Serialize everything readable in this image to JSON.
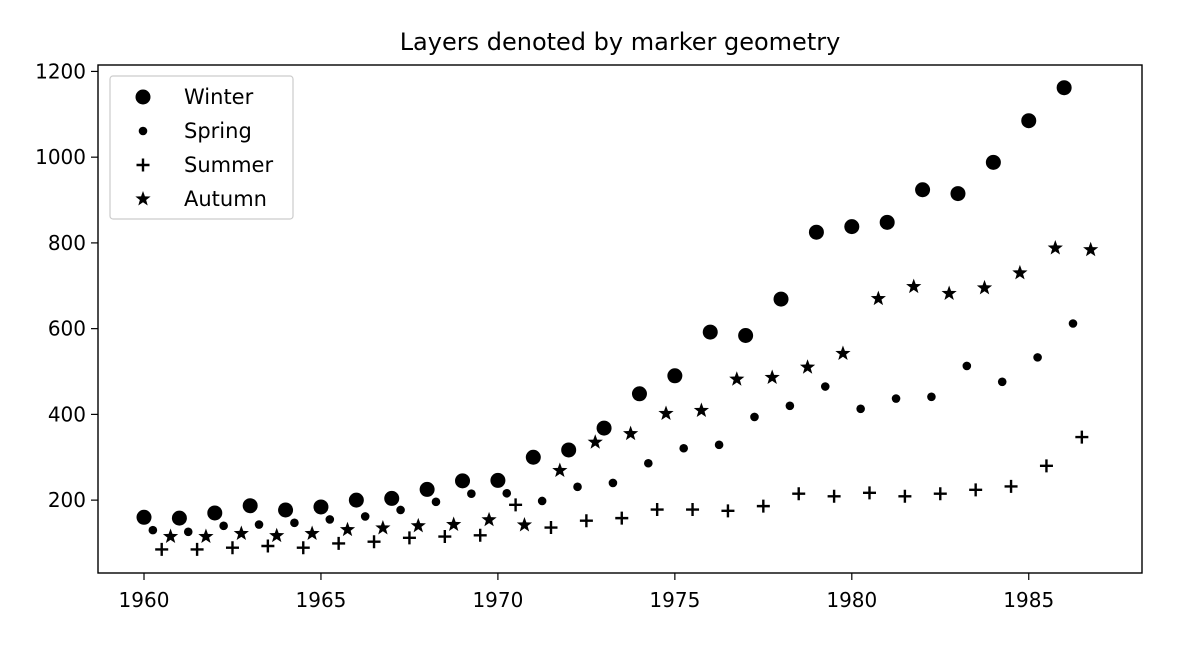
{
  "chart_data": {
    "type": "scatter",
    "title": "Layers denoted by marker geometry",
    "xlabel": "",
    "ylabel": "",
    "xlim": [
      1958.7,
      1988.2
    ],
    "ylim": [
      30,
      1215
    ],
    "x_ticks": [
      "1960",
      "1965",
      "1970",
      "1975",
      "1980",
      "1985"
    ],
    "y_ticks": [
      "200",
      "400",
      "600",
      "800",
      "1000",
      "1200"
    ],
    "grid": false,
    "legend_position": "upper left",
    "marker_color": "#000000",
    "series": [
      {
        "name": "Winter",
        "marker": "large-circle",
        "x": [
          1960,
          1961,
          1962,
          1963,
          1964,
          1965,
          1966,
          1967,
          1968,
          1969,
          1970,
          1971,
          1972,
          1973,
          1974,
          1975,
          1976,
          1977,
          1978,
          1979,
          1980,
          1981,
          1982,
          1983,
          1984,
          1985,
          1986
        ],
        "y": [
          160,
          158,
          170,
          187,
          177,
          184,
          200,
          204,
          225,
          245,
          246,
          300,
          317,
          368,
          448,
          490,
          592,
          584,
          669,
          825,
          838,
          848,
          924,
          915,
          988,
          1085,
          1162
        ]
      },
      {
        "name": "Spring",
        "marker": "small-circle",
        "x": [
          1960.25,
          1961.25,
          1962.25,
          1963.25,
          1964.25,
          1965.25,
          1966.25,
          1967.25,
          1968.25,
          1969.25,
          1970.25,
          1971.25,
          1972.25,
          1973.25,
          1974.25,
          1975.25,
          1976.25,
          1977.25,
          1978.25,
          1979.25,
          1980.25,
          1981.25,
          1982.25,
          1983.25,
          1984.25,
          1985.25,
          1986.25
        ],
        "y": [
          130,
          126,
          140,
          143,
          147,
          155,
          162,
          177,
          196,
          215,
          216,
          198,
          231,
          240,
          286,
          321,
          329,
          394,
          420,
          465,
          413,
          437,
          441,
          513,
          476,
          533,
          612
        ]
      },
      {
        "name": "Summer",
        "marker": "plus",
        "x": [
          1960.5,
          1961.5,
          1962.5,
          1963.5,
          1964.5,
          1965.5,
          1966.5,
          1967.5,
          1968.5,
          1969.5,
          1970.5,
          1971.5,
          1972.5,
          1973.5,
          1974.5,
          1975.5,
          1976.5,
          1977.5,
          1978.5,
          1979.5,
          1980.5,
          1981.5,
          1982.5,
          1983.5,
          1984.5,
          1985.5,
          1986.5
        ],
        "y": [
          85,
          85,
          89,
          93,
          89,
          99,
          103,
          112,
          115,
          118,
          189,
          136,
          152,
          158,
          178,
          178,
          175,
          186,
          215,
          209,
          217,
          209,
          215,
          224,
          232,
          280,
          347
        ]
      },
      {
        "name": "Autumn",
        "marker": "star",
        "x": [
          1960.75,
          1961.75,
          1962.75,
          1963.75,
          1964.75,
          1965.75,
          1966.75,
          1967.75,
          1968.75,
          1969.75,
          1970.75,
          1971.75,
          1972.75,
          1973.75,
          1974.75,
          1975.75,
          1976.75,
          1977.75,
          1978.75,
          1979.75,
          1980.75,
          1981.75,
          1982.75,
          1983.75,
          1984.75,
          1985.75,
          1986.75
        ],
        "y": [
          115,
          115,
          122,
          117,
          122,
          131,
          135,
          140,
          143,
          154,
          142,
          269,
          335,
          355,
          402,
          409,
          482,
          486,
          510,
          542,
          670,
          698,
          682,
          695,
          730,
          788,
          784
        ]
      }
    ]
  }
}
